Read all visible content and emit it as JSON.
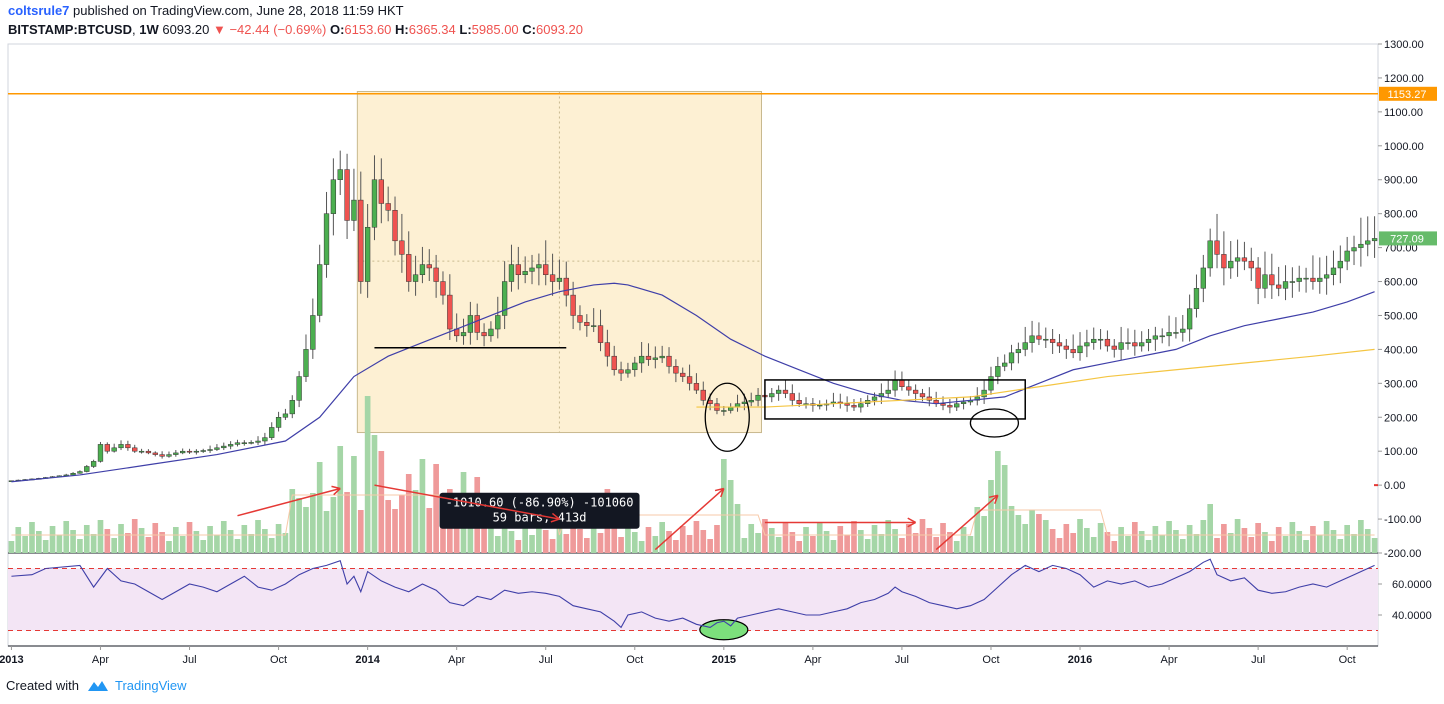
{
  "header": {
    "author": "coltsrule7",
    "published_text": "published on TradingView.com, June 28, 2018 11:59 HKT",
    "symbol": "BITSTAMP:BTCUSD",
    "interval": "1W",
    "last": "6093.20",
    "change": "−42.44 (−0.69%)",
    "o_label": "O:",
    "o": "6153.60",
    "h_label": "H:",
    "h": "6365.34",
    "l_label": "L:",
    "l": "5985.00",
    "c_label": "C:",
    "c": "6093.20"
  },
  "footer": {
    "created_with": "Created with",
    "brand": "TradingView"
  },
  "colors": {
    "up": "#4caf50",
    "down": "#ef5350",
    "vol_up": "#a5d6a7",
    "vol_down": "#ef9a9a",
    "ma_fast": "#3f3fa8",
    "ma_slow": "#f4c542",
    "hline": "#ff9800",
    "rsi_line": "#3f3fa8",
    "rsi_band": "#f3e5f5",
    "annotation": "#e53935",
    "range_box": "#fdf0d3"
  },
  "chart_data": {
    "type": "candlestick",
    "price_axis": {
      "ticks": [
        "1300.00",
        "1200.00",
        "1100.00",
        "1000.00",
        "900.00",
        "800.00",
        "700.00",
        "600.00",
        "500.00",
        "400.00",
        "300.00",
        "200.00",
        "100.00",
        "0.00",
        "-100.00",
        "-200.00"
      ],
      "range": [
        -200,
        1300
      ]
    },
    "rsi_axis": {
      "ticks": [
        "60.0000",
        "40.0000"
      ],
      "range": [
        20,
        80
      ]
    },
    "x_ticks": [
      {
        "label": "2013",
        "bold": true,
        "t": 0
      },
      {
        "label": "Apr",
        "t": 13
      },
      {
        "label": "Jul",
        "t": 26
      },
      {
        "label": "Oct",
        "t": 39
      },
      {
        "label": "2014",
        "bold": true,
        "t": 52
      },
      {
        "label": "Apr",
        "t": 65
      },
      {
        "label": "Jul",
        "t": 78
      },
      {
        "label": "Oct",
        "t": 91
      },
      {
        "label": "2015",
        "bold": true,
        "t": 104
      },
      {
        "label": "Apr",
        "t": 117
      },
      {
        "label": "Jul",
        "t": 130
      },
      {
        "label": "Oct",
        "t": 143
      },
      {
        "label": "2016",
        "bold": true,
        "t": 156
      },
      {
        "label": "Apr",
        "t": 169
      },
      {
        "label": "Jul",
        "t": 182
      },
      {
        "label": "Oct",
        "t": 195
      }
    ],
    "price_labels": [
      {
        "value": 1153.27,
        "text": "1153.27",
        "color": "#ff9800"
      },
      {
        "value": 727.09,
        "text": "727.09",
        "color": "#66bb6a"
      }
    ],
    "horizontal_line": 1153.27,
    "measure_box": {
      "t0": 50.5,
      "t1": 109.5,
      "p0": 155,
      "p1": 1160
    },
    "measure_label": [
      "-1010.60 (-86.90%) -101060",
      "59 bars, 413d"
    ],
    "support_line": {
      "t0": 53,
      "t1": 81,
      "p": 405
    },
    "consolidation_box": {
      "t0": 110,
      "t1": 148,
      "p0": 195,
      "p1": 310
    },
    "close_path": [
      [
        0,
        13
      ],
      [
        4,
        20
      ],
      [
        8,
        30
      ],
      [
        10,
        40
      ],
      [
        12,
        70
      ],
      [
        13,
        120
      ],
      [
        14,
        100
      ],
      [
        15,
        110
      ],
      [
        16,
        120
      ],
      [
        17,
        110
      ],
      [
        18,
        100
      ],
      [
        19,
        100
      ],
      [
        20,
        95
      ],
      [
        21,
        90
      ],
      [
        22,
        85
      ],
      [
        23,
        90
      ],
      [
        24,
        95
      ],
      [
        25,
        100
      ],
      [
        26,
        98
      ],
      [
        27,
        100
      ],
      [
        28,
        102
      ],
      [
        29,
        105
      ],
      [
        30,
        110
      ],
      [
        31,
        115
      ],
      [
        32,
        120
      ],
      [
        33,
        125
      ],
      [
        34,
        125
      ],
      [
        35,
        126
      ],
      [
        36,
        130
      ],
      [
        37,
        140
      ],
      [
        38,
        170
      ],
      [
        39,
        200
      ],
      [
        40,
        210
      ],
      [
        41,
        250
      ],
      [
        42,
        320
      ],
      [
        43,
        400
      ],
      [
        44,
        500
      ],
      [
        45,
        650
      ],
      [
        46,
        800
      ],
      [
        47,
        900
      ],
      [
        48,
        930
      ],
      [
        49,
        780
      ],
      [
        50,
        840
      ],
      [
        51,
        600
      ],
      [
        52,
        760
      ],
      [
        53,
        900
      ],
      [
        54,
        830
      ],
      [
        55,
        810
      ],
      [
        56,
        720
      ],
      [
        57,
        680
      ],
      [
        58,
        600
      ],
      [
        59,
        620
      ],
      [
        60,
        650
      ],
      [
        61,
        640
      ],
      [
        62,
        600
      ],
      [
        63,
        560
      ],
      [
        64,
        460
      ],
      [
        65,
        440
      ],
      [
        66,
        450
      ],
      [
        67,
        500
      ],
      [
        68,
        450
      ],
      [
        69,
        440
      ],
      [
        70,
        460
      ],
      [
        71,
        500
      ],
      [
        72,
        600
      ],
      [
        73,
        650
      ],
      [
        74,
        620
      ],
      [
        75,
        630
      ],
      [
        76,
        640
      ],
      [
        77,
        650
      ],
      [
        78,
        620
      ],
      [
        79,
        600
      ],
      [
        80,
        610
      ],
      [
        81,
        560
      ],
      [
        82,
        500
      ],
      [
        83,
        480
      ],
      [
        84,
        470
      ],
      [
        85,
        470
      ],
      [
        86,
        420
      ],
      [
        87,
        380
      ],
      [
        88,
        340
      ],
      [
        89,
        330
      ],
      [
        90,
        340
      ],
      [
        91,
        360
      ],
      [
        92,
        380
      ],
      [
        93,
        370
      ],
      [
        94,
        375
      ],
      [
        95,
        380
      ],
      [
        96,
        350
      ],
      [
        97,
        330
      ],
      [
        98,
        320
      ],
      [
        99,
        300
      ],
      [
        100,
        280
      ],
      [
        101,
        250
      ],
      [
        102,
        240
      ],
      [
        103,
        220
      ],
      [
        104,
        220
      ],
      [
        105,
        230
      ],
      [
        106,
        240
      ],
      [
        107,
        245
      ],
      [
        108,
        250
      ],
      [
        109,
        265
      ],
      [
        110,
        260
      ],
      [
        111,
        270
      ],
      [
        112,
        280
      ],
      [
        113,
        270
      ],
      [
        114,
        250
      ],
      [
        115,
        240
      ],
      [
        116,
        240
      ],
      [
        117,
        235
      ],
      [
        118,
        236
      ],
      [
        119,
        240
      ],
      [
        120,
        245
      ],
      [
        121,
        240
      ],
      [
        122,
        235
      ],
      [
        123,
        230
      ],
      [
        124,
        240
      ],
      [
        125,
        250
      ],
      [
        126,
        260
      ],
      [
        127,
        270
      ],
      [
        128,
        280
      ],
      [
        129,
        310
      ],
      [
        130,
        290
      ],
      [
        131,
        280
      ],
      [
        132,
        270
      ],
      [
        133,
        260
      ],
      [
        134,
        250
      ],
      [
        135,
        240
      ],
      [
        136,
        235
      ],
      [
        137,
        230
      ],
      [
        138,
        240
      ],
      [
        139,
        245
      ],
      [
        140,
        250
      ],
      [
        141,
        260
      ],
      [
        142,
        280
      ],
      [
        143,
        320
      ],
      [
        144,
        350
      ],
      [
        145,
        360
      ],
      [
        146,
        390
      ],
      [
        147,
        400
      ],
      [
        148,
        420
      ],
      [
        149,
        440
      ],
      [
        150,
        430
      ],
      [
        151,
        430
      ],
      [
        152,
        420
      ],
      [
        153,
        410
      ],
      [
        154,
        400
      ],
      [
        155,
        390
      ],
      [
        156,
        410
      ],
      [
        157,
        420
      ],
      [
        158,
        430
      ],
      [
        159,
        430
      ],
      [
        160,
        410
      ],
      [
        161,
        400
      ],
      [
        162,
        420
      ],
      [
        163,
        420
      ],
      [
        164,
        410
      ],
      [
        165,
        420
      ],
      [
        166,
        430
      ],
      [
        167,
        440
      ],
      [
        168,
        440
      ],
      [
        169,
        450
      ],
      [
        170,
        450
      ],
      [
        171,
        460
      ],
      [
        172,
        520
      ],
      [
        173,
        580
      ],
      [
        174,
        640
      ],
      [
        175,
        720
      ],
      [
        176,
        680
      ],
      [
        177,
        640
      ],
      [
        178,
        660
      ],
      [
        179,
        670
      ],
      [
        180,
        660
      ],
      [
        181,
        640
      ],
      [
        182,
        580
      ],
      [
        183,
        620
      ],
      [
        184,
        590
      ],
      [
        185,
        580
      ],
      [
        186,
        600
      ],
      [
        187,
        600
      ],
      [
        188,
        610
      ],
      [
        189,
        610
      ],
      [
        190,
        600
      ],
      [
        191,
        610
      ],
      [
        192,
        620
      ],
      [
        193,
        640
      ],
      [
        194,
        660
      ],
      [
        195,
        690
      ],
      [
        196,
        700
      ],
      [
        197,
        710
      ],
      [
        198,
        720
      ],
      [
        199,
        727
      ]
    ],
    "ma_fast": [
      [
        0,
        10
      ],
      [
        10,
        30
      ],
      [
        20,
        60
      ],
      [
        30,
        90
      ],
      [
        40,
        130
      ],
      [
        45,
        200
      ],
      [
        50,
        320
      ],
      [
        55,
        380
      ],
      [
        60,
        420
      ],
      [
        65,
        460
      ],
      [
        70,
        500
      ],
      [
        75,
        540
      ],
      [
        80,
        570
      ],
      [
        85,
        590
      ],
      [
        88,
        595
      ],
      [
        90,
        590
      ],
      [
        95,
        560
      ],
      [
        100,
        500
      ],
      [
        105,
        430
      ],
      [
        110,
        380
      ],
      [
        115,
        340
      ],
      [
        120,
        300
      ],
      [
        125,
        270
      ],
      [
        130,
        250
      ],
      [
        135,
        240
      ],
      [
        140,
        250
      ],
      [
        145,
        260
      ],
      [
        150,
        300
      ],
      [
        155,
        340
      ],
      [
        160,
        360
      ],
      [
        165,
        380
      ],
      [
        170,
        400
      ],
      [
        175,
        440
      ],
      [
        180,
        470
      ],
      [
        185,
        490
      ],
      [
        190,
        510
      ],
      [
        195,
        540
      ],
      [
        199,
        570
      ]
    ],
    "ma_slow": [
      [
        100,
        230
      ],
      [
        110,
        230
      ],
      [
        120,
        240
      ],
      [
        130,
        250
      ],
      [
        140,
        260
      ],
      [
        150,
        290
      ],
      [
        160,
        320
      ],
      [
        170,
        340
      ],
      [
        180,
        360
      ],
      [
        190,
        380
      ],
      [
        199,
        400
      ]
    ],
    "rsi": [
      [
        0,
        65
      ],
      [
        3,
        66
      ],
      [
        5,
        70
      ],
      [
        10,
        72
      ],
      [
        12,
        58
      ],
      [
        14,
        70
      ],
      [
        16,
        62
      ],
      [
        18,
        60
      ],
      [
        20,
        55
      ],
      [
        22,
        50
      ],
      [
        24,
        55
      ],
      [
        26,
        60
      ],
      [
        28,
        58
      ],
      [
        30,
        55
      ],
      [
        32,
        60
      ],
      [
        34,
        65
      ],
      [
        36,
        58
      ],
      [
        38,
        56
      ],
      [
        40,
        60
      ],
      [
        42,
        66
      ],
      [
        44,
        70
      ],
      [
        46,
        72
      ],
      [
        48,
        75
      ],
      [
        49,
        60
      ],
      [
        50,
        65
      ],
      [
        51,
        55
      ],
      [
        52,
        68
      ],
      [
        54,
        62
      ],
      [
        56,
        58
      ],
      [
        58,
        55
      ],
      [
        60,
        60
      ],
      [
        62,
        56
      ],
      [
        64,
        48
      ],
      [
        66,
        46
      ],
      [
        68,
        52
      ],
      [
        70,
        50
      ],
      [
        72,
        56
      ],
      [
        74,
        54
      ],
      [
        76,
        55
      ],
      [
        78,
        54
      ],
      [
        80,
        52
      ],
      [
        82,
        46
      ],
      [
        84,
        44
      ],
      [
        86,
        42
      ],
      [
        88,
        36
      ],
      [
        89,
        32
      ],
      [
        90,
        40
      ],
      [
        92,
        42
      ],
      [
        94,
        38
      ],
      [
        96,
        36
      ],
      [
        98,
        38
      ],
      [
        100,
        34
      ],
      [
        102,
        32
      ],
      [
        103,
        35
      ],
      [
        104,
        36
      ],
      [
        105,
        33
      ],
      [
        106,
        38
      ],
      [
        108,
        40
      ],
      [
        110,
        42
      ],
      [
        112,
        44
      ],
      [
        114,
        42
      ],
      [
        116,
        40
      ],
      [
        118,
        40
      ],
      [
        120,
        42
      ],
      [
        122,
        44
      ],
      [
        124,
        48
      ],
      [
        126,
        50
      ],
      [
        128,
        54
      ],
      [
        129,
        58
      ],
      [
        130,
        55
      ],
      [
        132,
        52
      ],
      [
        134,
        48
      ],
      [
        136,
        46
      ],
      [
        138,
        44
      ],
      [
        140,
        46
      ],
      [
        142,
        50
      ],
      [
        144,
        58
      ],
      [
        146,
        66
      ],
      [
        148,
        72
      ],
      [
        150,
        68
      ],
      [
        152,
        72
      ],
      [
        154,
        70
      ],
      [
        156,
        66
      ],
      [
        158,
        58
      ],
      [
        160,
        62
      ],
      [
        162,
        60
      ],
      [
        164,
        62
      ],
      [
        166,
        58
      ],
      [
        168,
        60
      ],
      [
        170,
        64
      ],
      [
        172,
        68
      ],
      [
        174,
        74
      ],
      [
        175,
        76
      ],
      [
        176,
        66
      ],
      [
        178,
        62
      ],
      [
        180,
        64
      ],
      [
        182,
        56
      ],
      [
        184,
        54
      ],
      [
        186,
        55
      ],
      [
        188,
        58
      ],
      [
        190,
        60
      ],
      [
        192,
        58
      ],
      [
        194,
        62
      ],
      [
        196,
        66
      ],
      [
        198,
        70
      ],
      [
        199,
        72
      ]
    ],
    "volume_spikes": [
      [
        45,
        40
      ],
      [
        48,
        60
      ],
      [
        50,
        45
      ],
      [
        52,
        100
      ],
      [
        53,
        70
      ],
      [
        54,
        40
      ],
      [
        58,
        30
      ],
      [
        60,
        40
      ],
      [
        62,
        30
      ],
      [
        66,
        35
      ],
      [
        68,
        25
      ],
      [
        87,
        30
      ],
      [
        90,
        28
      ],
      [
        104,
        75
      ],
      [
        105,
        40
      ],
      [
        106,
        25
      ],
      [
        143,
        45
      ],
      [
        144,
        60
      ],
      [
        145,
        55
      ],
      [
        150,
        20
      ],
      [
        175,
        25
      ]
    ]
  }
}
